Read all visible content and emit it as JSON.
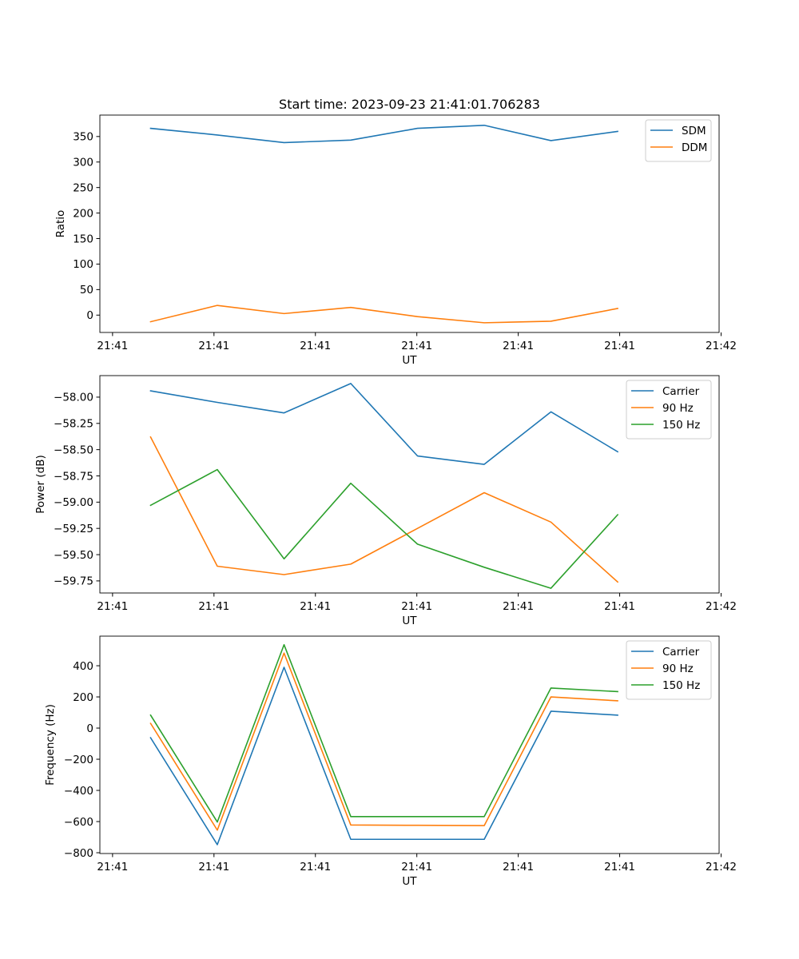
{
  "chart_data": [
    {
      "type": "line",
      "title": "Start time: 2023-09-23 21:41:01.706283",
      "xlabel": "UT",
      "ylabel": "Ratio",
      "x_tick_labels": [
        "21:41",
        "21:41",
        "21:41",
        "21:41",
        "21:41",
        "21:41",
        "21:42"
      ],
      "x_index_range": [
        -0.76,
        8.52
      ],
      "ylim": [
        -34,
        392
      ],
      "y_ticks": [
        0,
        50,
        100,
        150,
        200,
        250,
        300,
        350
      ],
      "legend_loc": "upper right",
      "series": [
        {
          "name": "SDM",
          "color": "#1f77b4",
          "values": [
            366,
            353,
            338,
            343,
            366,
            372,
            342,
            360
          ]
        },
        {
          "name": "DDM",
          "color": "#ff7f0e",
          "values": [
            -13,
            19,
            3,
            15,
            -3,
            -15,
            -12,
            13
          ]
        }
      ]
    },
    {
      "type": "line",
      "title": "",
      "xlabel": "UT",
      "ylabel": "Power (dB)",
      "x_tick_labels": [
        "21:41",
        "21:41",
        "21:41",
        "21:41",
        "21:41",
        "21:41",
        "21:42"
      ],
      "x_index_range": [
        -0.76,
        8.52
      ],
      "ylim": [
        -59.865,
        -57.795
      ],
      "y_ticks": [
        -59.75,
        -59.5,
        -59.25,
        -59.0,
        -58.75,
        -58.5,
        -58.25,
        -58.0
      ],
      "y_tick_labels": [
        "−59.75",
        "−59.50",
        "−59.25",
        "−59.00",
        "−58.75",
        "−58.50",
        "−58.25",
        "−58.00"
      ],
      "legend_loc": "upper right",
      "series": [
        {
          "name": "Carrier",
          "color": "#1f77b4",
          "values": [
            -57.94,
            -58.05,
            -58.15,
            -57.87,
            -58.56,
            -58.64,
            -58.14,
            -58.52
          ]
        },
        {
          "name": "90 Hz",
          "color": "#ff7f0e",
          "values": [
            -58.38,
            -59.61,
            -59.69,
            -59.59,
            -59.25,
            -58.91,
            -59.19,
            -59.76
          ]
        },
        {
          "name": "150 Hz",
          "color": "#2ca02c",
          "values": [
            -59.03,
            -58.69,
            -59.54,
            -58.82,
            -59.4,
            -59.62,
            -59.82,
            -59.12
          ]
        }
      ]
    },
    {
      "type": "line",
      "title": "",
      "xlabel": "UT",
      "ylabel": "Frequency (Hz)",
      "x_tick_labels": [
        "21:41",
        "21:41",
        "21:41",
        "21:41",
        "21:41",
        "21:41",
        "21:42"
      ],
      "x_index_range": [
        -0.76,
        8.52
      ],
      "ylim": [
        -805,
        590
      ],
      "y_ticks": [
        -800,
        -600,
        -400,
        -200,
        0,
        200,
        400
      ],
      "y_tick_labels": [
        "−800",
        "−600",
        "−400",
        "−200",
        "0",
        "200",
        "400"
      ],
      "legend_loc": "upper right",
      "series": [
        {
          "name": "Carrier",
          "color": "#1f77b4",
          "values": [
            -62,
            -748,
            390,
            -714,
            -714,
            -714,
            108,
            83
          ]
        },
        {
          "name": "90 Hz",
          "color": "#ff7f0e",
          "values": [
            30,
            -655,
            481,
            -622,
            -624,
            -626,
            200,
            175
          ]
        },
        {
          "name": "150 Hz",
          "color": "#2ca02c",
          "values": [
            83,
            -603,
            535,
            -568,
            -568,
            -568,
            257,
            234
          ]
        }
      ]
    }
  ]
}
